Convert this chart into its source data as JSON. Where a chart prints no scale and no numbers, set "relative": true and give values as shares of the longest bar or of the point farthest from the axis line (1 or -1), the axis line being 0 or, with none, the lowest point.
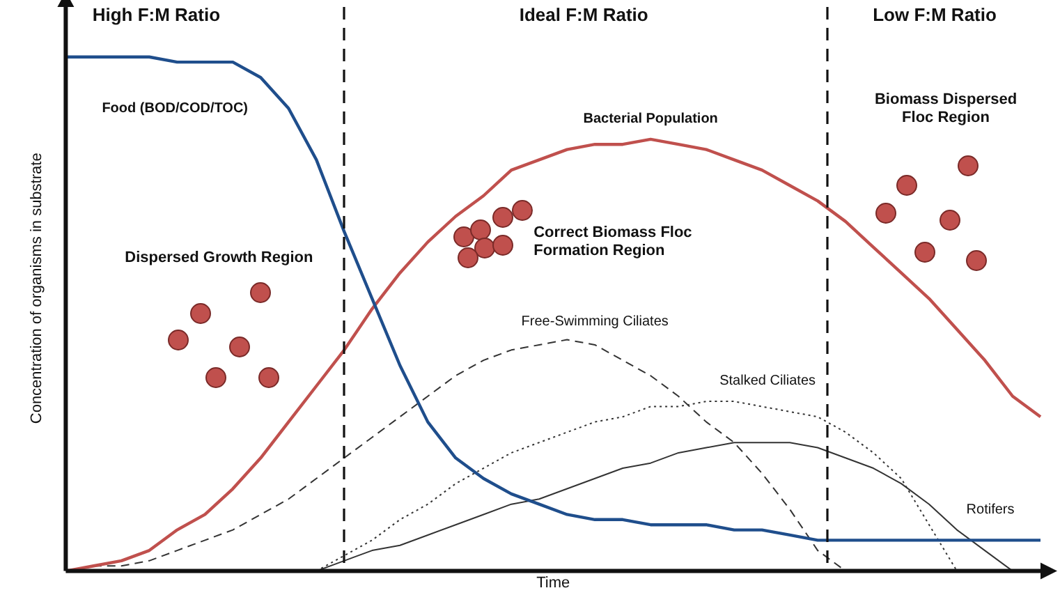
{
  "chart_data": {
    "type": "line",
    "relative": true,
    "xlabel": "Time",
    "ylabel": "Concentration of organisms in substrate",
    "marker": "none",
    "categories": [
      null,
      null,
      null,
      null,
      null,
      null,
      null,
      null,
      null,
      null,
      null,
      null,
      null,
      null,
      null,
      null,
      null,
      null,
      null,
      null,
      null,
      null,
      null,
      null,
      null,
      null,
      null,
      null,
      null,
      null,
      null,
      null,
      null,
      null,
      null,
      null
    ],
    "series": [
      {
        "name": "Food (BOD/COD/TOC)",
        "color": "#1f4e8c",
        "line_style": "solid",
        "values": [
          1,
          1,
          1,
          1,
          0.99,
          0.99,
          0.99,
          0.96,
          0.9,
          0.8,
          0.66,
          0.53,
          0.4,
          0.29,
          0.22,
          0.18,
          0.15,
          0.13,
          0.11,
          0.1,
          0.1,
          0.09,
          0.09,
          0.09,
          0.08,
          0.08,
          0.07,
          0.06,
          0.06,
          0.06,
          0.06,
          0.06,
          0.06,
          0.06,
          0.06,
          0.06
        ]
      },
      {
        "name": "Bacterial Population",
        "color": "#c0504d",
        "line_style": "solid",
        "values": [
          0,
          0.01,
          0.02,
          0.04,
          0.08,
          0.11,
          0.16,
          0.22,
          0.29,
          0.36,
          0.43,
          0.51,
          0.58,
          0.64,
          0.69,
          0.73,
          0.78,
          0.8,
          0.82,
          0.83,
          0.83,
          0.84,
          0.83,
          0.82,
          0.8,
          0.78,
          0.75,
          0.72,
          0.68,
          0.63,
          0.58,
          0.53,
          0.47,
          0.41,
          0.34,
          0.3
        ]
      },
      {
        "name": "Free-Swimming Ciliates",
        "color": "#333333",
        "line_style": "dashed",
        "values": [
          0,
          0.01,
          0.01,
          0.02,
          0.04,
          0.06,
          0.08,
          0.11,
          0.14,
          0.18,
          0.22,
          0.26,
          0.3,
          0.34,
          0.38,
          0.41,
          0.43,
          0.44,
          0.45,
          0.44,
          0.41,
          0.38,
          0.34,
          0.29,
          0.25,
          0.19,
          0.12,
          0.04,
          0,
          null,
          null,
          null,
          null,
          null,
          null,
          null
        ]
      },
      {
        "name": "Stalked Ciliates",
        "color": "#333333",
        "line_style": "dotted",
        "values": [
          null,
          null,
          null,
          null,
          null,
          null,
          null,
          null,
          null,
          0,
          0.03,
          0.06,
          0.1,
          0.13,
          0.17,
          0.2,
          0.23,
          0.25,
          0.27,
          0.29,
          0.3,
          0.32,
          0.32,
          0.33,
          0.33,
          0.32,
          0.31,
          0.3,
          0.27,
          0.23,
          0.18,
          0.09,
          0,
          null,
          null,
          null
        ]
      },
      {
        "name": "Rotifers",
        "color": "#333333",
        "line_style": "solid",
        "values": [
          null,
          null,
          null,
          null,
          null,
          null,
          null,
          null,
          null,
          0,
          0.02,
          0.04,
          0.05,
          0.07,
          0.09,
          0.11,
          0.13,
          0.14,
          0.16,
          0.18,
          0.2,
          0.21,
          0.23,
          0.24,
          0.25,
          0.25,
          0.25,
          0.24,
          0.22,
          0.2,
          0.17,
          0.13,
          0.08,
          0.04,
          0,
          null
        ]
      }
    ],
    "annotations": [
      "High F:M Ratio",
      "Ideal F:M Ratio",
      "Low F:M Ratio",
      "Dispersed Growth Region",
      "Correct Biomass Floc Formation Region",
      "Biomass Dispersed Floc Region"
    ]
  }
}
